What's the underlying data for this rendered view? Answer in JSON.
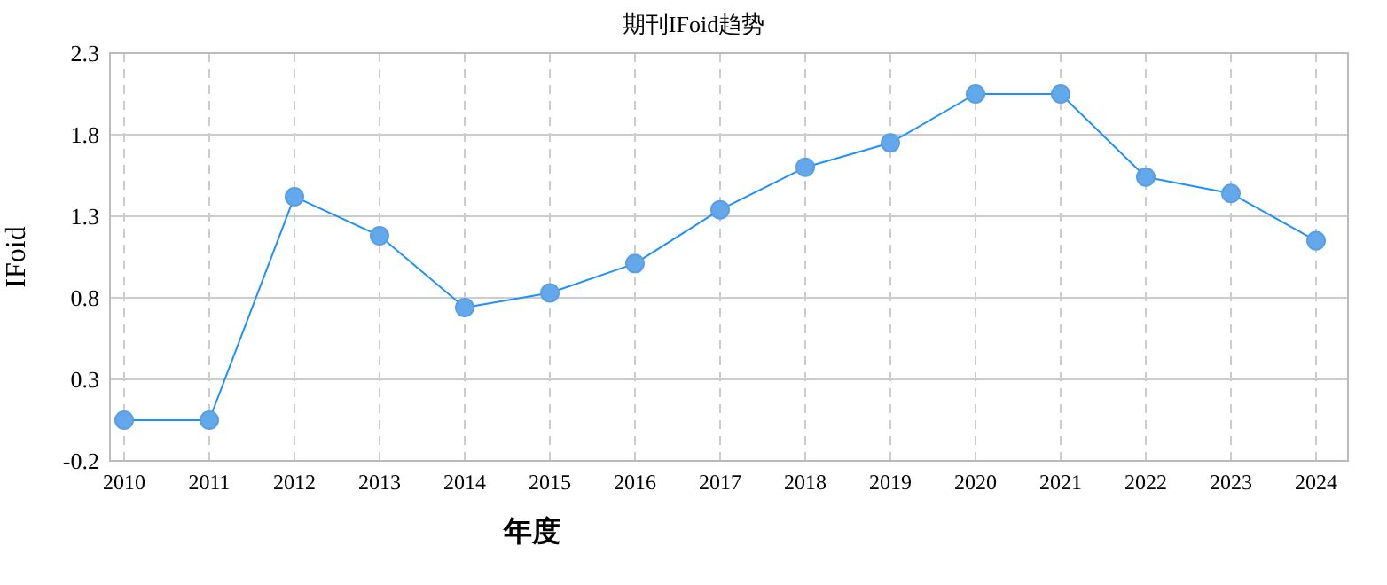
{
  "chart_data": {
    "type": "line",
    "title": "期刊IFoid趋势",
    "xlabel": "年度",
    "ylabel": "IFoid",
    "categories": [
      "2010",
      "2011",
      "2012",
      "2013",
      "2014",
      "2015",
      "2016",
      "2017",
      "2018",
      "2019",
      "2020",
      "2021",
      "2022",
      "2023",
      "2024"
    ],
    "series": [
      {
        "color": "#1e90ff",
        "values": [
          0.05,
          0.05,
          1.42,
          1.18,
          0.74,
          0.83,
          1.01,
          1.34,
          1.6,
          1.75,
          2.05,
          2.05,
          1.54,
          1.44,
          1.15
        ]
      }
    ],
    "ylim": [
      -0.2,
      2.3
    ],
    "yticks": [
      -0.2,
      0.3,
      0.8,
      1.3,
      1.8,
      2.3
    ],
    "grid": true,
    "marker": "circle",
    "line_style": "solid"
  }
}
